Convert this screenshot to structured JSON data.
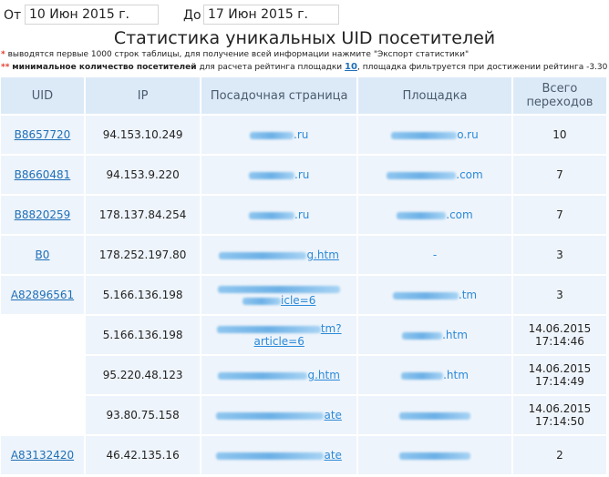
{
  "filters": {
    "from_label": "От",
    "from_value": "10 Июн 2015 г.",
    "to_label": "До",
    "to_value": "17 Июн 2015 г."
  },
  "title": "Статистика уникальных UID посетителей",
  "notes": {
    "note1_mark": "*",
    "note1_text": "выводятся первые 1000 строк таблицы, для получение всей информации нажмите \"Экспорт статистики\"",
    "note2_mark": "**",
    "note2_bold": "минимальное количество посетителей",
    "note2_text1": "для расчета рейтинга площадки",
    "note2_link": "10",
    "note2_text2": ", площадка фильтруется при достижении рейтинга -3.30"
  },
  "table": {
    "headers": [
      "UID",
      "IP",
      "Посадочная страница",
      "Площадка",
      "Всего переходов"
    ],
    "rows": [
      {
        "uid": "B8657720",
        "ip": "94.153.10.249",
        "page": ".ru",
        "site": "o.ru",
        "total": "10"
      },
      {
        "uid": "B8660481",
        "ip": "94.153.9.220",
        "page": ".ru",
        "site": ".com",
        "total": "7"
      },
      {
        "uid": "B8820259",
        "ip": "178.137.84.254",
        "page": ".ru",
        "site": ".com",
        "total": "7"
      },
      {
        "uid": "B0",
        "ip": "178.252.197.80",
        "page": "g.htm",
        "site": "-",
        "total": "3"
      },
      {
        "uid": "A82896561",
        "ip": "5.166.136.198",
        "page": "icle=6",
        "site": ".tm",
        "total": "3"
      },
      {
        "uid": "",
        "ip": "5.166.136.198",
        "page": "tm?",
        "page2": "article=6",
        "site": ".htm",
        "total": "14.06.2015",
        "total2": "17:14:46"
      },
      {
        "uid": "",
        "ip": "95.220.48.123",
        "page": "g.htm",
        "site": ".htm",
        "total": "14.06.2015",
        "total2": "17:14:49"
      },
      {
        "uid": "",
        "ip": "93.80.75.158",
        "page": "ate",
        "site": "",
        "total": "14.06.2015",
        "total2": "17:14:50"
      },
      {
        "uid": "A83132420",
        "ip": "46.42.135.16",
        "page": "ate",
        "site": "",
        "total": "2"
      }
    ]
  }
}
